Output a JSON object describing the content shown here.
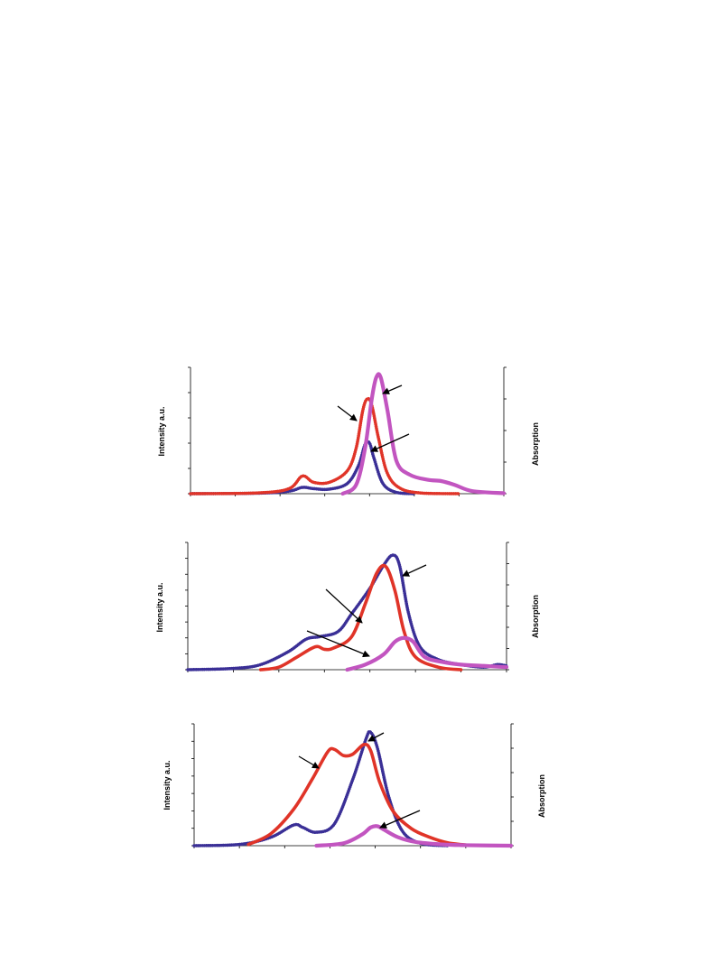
{
  "colors": {
    "blue": "#3a2f96",
    "red": "#e03428",
    "magenta": "#c255c0",
    "axis": "#000000"
  },
  "chart_data": [
    {
      "type": "line",
      "ylabel_left": "Intensity a.u.",
      "ylabel_right": "Absorption",
      "xlim": [
        0,
        7
      ],
      "ylim": [
        0,
        5
      ],
      "x_ticks": 7,
      "y_ticks_left": 5,
      "y_ticks_right": 4,
      "series": [
        {
          "color": "blue",
          "style": "dotted-line",
          "x": [
            0,
            1.5,
            2.2,
            2.5,
            2.75,
            3.1,
            3.5,
            3.75,
            3.9,
            4.0,
            4.1,
            4.3,
            4.6,
            5.0
          ],
          "values": [
            0,
            0.02,
            0.1,
            0.25,
            0.2,
            0.18,
            0.4,
            1.1,
            1.95,
            2.0,
            1.4,
            0.4,
            0.05,
            0
          ]
        },
        {
          "color": "red",
          "style": "dotted-line",
          "x": [
            0,
            1.5,
            2.2,
            2.5,
            2.75,
            3.1,
            3.5,
            3.7,
            3.85,
            3.95,
            4.05,
            4.2,
            4.4,
            4.7,
            5.2,
            6.0
          ],
          "values": [
            0,
            0.03,
            0.2,
            0.7,
            0.45,
            0.45,
            0.9,
            1.8,
            3.3,
            3.75,
            3.5,
            2.2,
            0.8,
            0.2,
            0.02,
            0
          ]
        },
        {
          "color": "magenta",
          "style": "thick-line",
          "x": [
            3.4,
            3.7,
            3.9,
            4.05,
            4.15,
            4.25,
            4.4,
            4.6,
            4.9,
            5.3,
            5.6,
            5.9,
            6.3,
            7.0
          ],
          "values": [
            0,
            0.35,
            1.8,
            3.75,
            4.6,
            4.6,
            3.3,
            1.3,
            0.75,
            0.55,
            0.5,
            0.35,
            0.1,
            0.02
          ]
        }
      ]
    },
    {
      "type": "line",
      "ylabel_left": "Intensity a.u.",
      "ylabel_right": "Absorption",
      "xlim": [
        0,
        7
      ],
      "ylim": [
        0,
        5
      ],
      "x_ticks": 7,
      "y_ticks_left": 8,
      "y_ticks_right": 6,
      "series": [
        {
          "color": "blue",
          "style": "dotted-line",
          "x": [
            0,
            1.0,
            1.6,
            2.2,
            2.6,
            2.9,
            3.3,
            3.6,
            4.0,
            4.3,
            4.5,
            4.65,
            4.85,
            5.1,
            5.5,
            6.0,
            6.5,
            6.8,
            7.0
          ],
          "values": [
            0,
            0.05,
            0.2,
            0.7,
            1.2,
            1.3,
            1.5,
            2.2,
            3.2,
            4.1,
            4.5,
            4.1,
            2.2,
            0.9,
            0.4,
            0.2,
            0.1,
            0.2,
            0.15
          ]
        },
        {
          "color": "red",
          "style": "thick-line",
          "x": [
            1.6,
            2.0,
            2.4,
            2.8,
            3.0,
            3.2,
            3.6,
            3.9,
            4.15,
            4.35,
            4.55,
            4.75,
            5.0,
            5.5,
            6.0
          ],
          "values": [
            0,
            0.1,
            0.5,
            0.9,
            0.8,
            0.85,
            1.3,
            2.6,
            3.8,
            4.05,
            3.1,
            1.5,
            0.5,
            0.1,
            0
          ]
        },
        {
          "color": "magenta",
          "style": "thick-line",
          "x": [
            3.5,
            3.9,
            4.3,
            4.55,
            4.75,
            4.95,
            5.2,
            5.6,
            6.0,
            6.5,
            7.0
          ],
          "values": [
            0,
            0.2,
            0.6,
            1.1,
            1.25,
            1.1,
            0.5,
            0.3,
            0.2,
            0.15,
            0.1
          ]
        }
      ]
    },
    {
      "type": "line",
      "ylabel_left": "Intensity a.u.",
      "ylabel_right": "Absorption",
      "xlim": [
        0,
        7
      ],
      "ylim": [
        0,
        5
      ],
      "x_ticks": 7,
      "y_ticks_left": 7,
      "y_ticks_right": 5,
      "series": [
        {
          "color": "blue",
          "style": "dotted-line",
          "x": [
            0,
            1.0,
            1.7,
            2.2,
            2.4,
            2.7,
            3.1,
            3.5,
            3.8,
            3.9,
            4.05,
            4.3,
            4.6,
            5.0,
            5.6
          ],
          "values": [
            0,
            0.05,
            0.35,
            0.85,
            0.75,
            0.55,
            0.9,
            2.7,
            4.4,
            4.65,
            4.0,
            2.0,
            0.6,
            0.1,
            0
          ]
        },
        {
          "color": "red",
          "style": "thick-line",
          "x": [
            1.2,
            1.7,
            2.2,
            2.6,
            2.95,
            3.1,
            3.3,
            3.5,
            3.75,
            3.9,
            4.1,
            4.4,
            4.8,
            5.2,
            5.6,
            6.0
          ],
          "values": [
            0.05,
            0.5,
            1.5,
            2.7,
            3.85,
            3.95,
            3.7,
            3.75,
            4.15,
            3.9,
            2.6,
            1.4,
            0.7,
            0.35,
            0.12,
            0.03
          ]
        },
        {
          "color": "magenta",
          "style": "thick-line",
          "x": [
            2.7,
            3.3,
            3.7,
            3.9,
            4.05,
            4.2,
            4.5,
            4.9,
            5.5,
            6.0,
            7.0
          ],
          "values": [
            0,
            0.1,
            0.45,
            0.75,
            0.8,
            0.65,
            0.35,
            0.15,
            0.05,
            0.02,
            0
          ]
        }
      ]
    }
  ]
}
